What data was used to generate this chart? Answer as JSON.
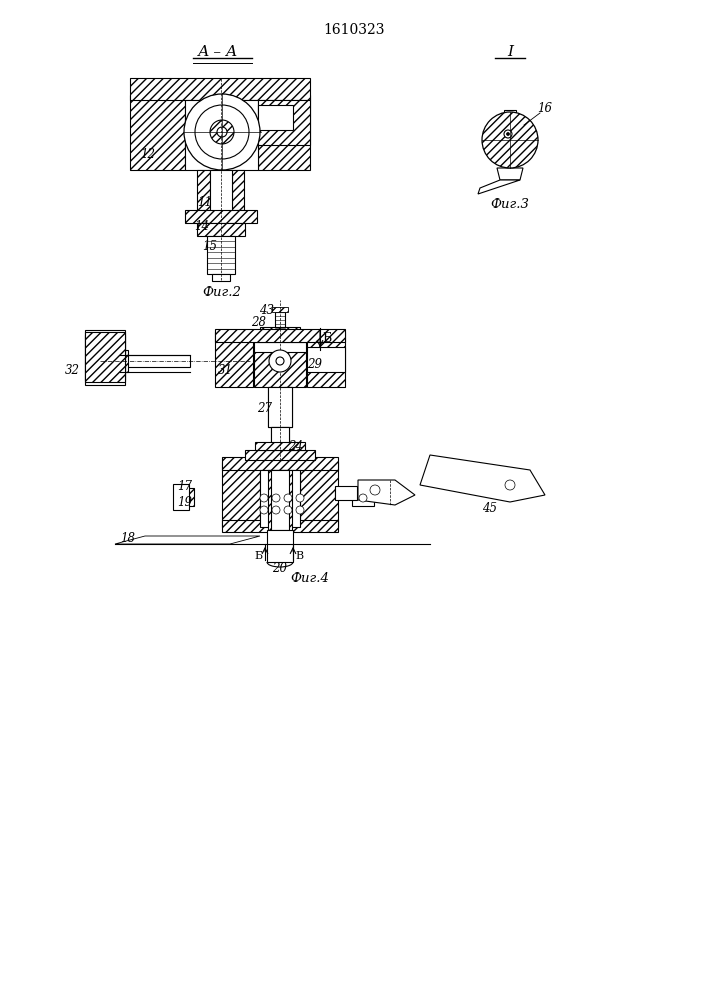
{
  "title": "1610323",
  "bg_color": "#ffffff",
  "lw": 0.8,
  "hatch_lw": 0.5,
  "fig2_caption": "Фиг.2",
  "fig3_caption": "Фиг.3",
  "fig4_caption": "Фиг.4",
  "label_fontsize": 8.5,
  "caption_fontsize": 9.5
}
